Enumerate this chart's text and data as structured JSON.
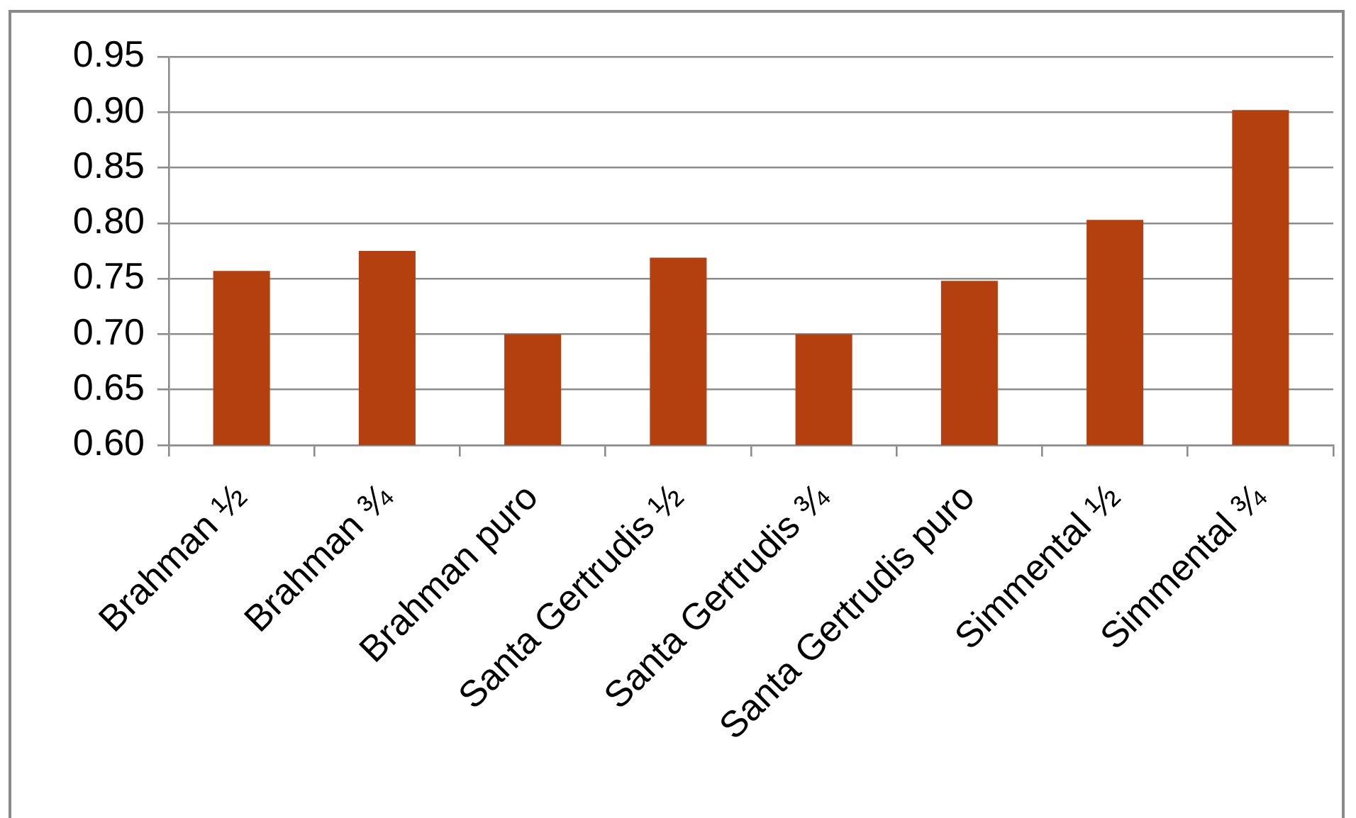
{
  "chart_data": {
    "type": "bar",
    "categories": [
      "Brahman ½",
      "Brahman ¾",
      "Brahman puro",
      "Santa Gertrudis ½",
      "Santa Gertrudis ¾",
      "Santa Gertrudis puro",
      "Simmental ½",
      "Simmental ¾"
    ],
    "values": [
      0.757,
      0.775,
      0.7,
      0.769,
      0.7,
      0.748,
      0.803,
      0.902
    ],
    "color": "#b3400e",
    "ylim": [
      0.6,
      0.95
    ],
    "yticks": [
      {
        "value": 0.6,
        "label": "0.60"
      },
      0.65,
      {
        "value": 0.7,
        "label": "0.70"
      },
      0.75,
      {
        "value": 0.8,
        "label": "0.80"
      },
      0.85,
      {
        "value": 0.9,
        "label": "0.90"
      },
      0.95
    ],
    "grid": "y"
  }
}
